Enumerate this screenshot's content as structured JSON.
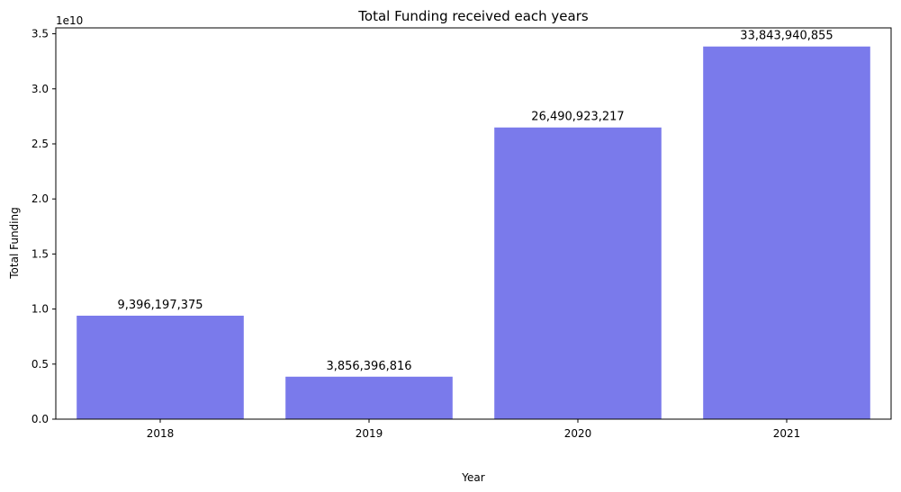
{
  "chart_data": {
    "type": "bar",
    "title": "Total Funding received each years",
    "xlabel": "Year",
    "ylabel": "Total Funding",
    "offset_label": "1e10",
    "categories": [
      "2018",
      "2019",
      "2020",
      "2021"
    ],
    "values": [
      9396197375,
      3856396816,
      26490923217,
      33843940855
    ],
    "value_labels": [
      "9,396,197,375",
      "3,856,396,816",
      "26,490,923,217",
      "33,843,940,855"
    ],
    "y_ticks": [
      0,
      0.5,
      1.0,
      1.5,
      2.0,
      2.5,
      3.0,
      3.5
    ],
    "y_tick_labels": [
      "0.0",
      "0.5",
      "1.0",
      "1.5",
      "2.0",
      "2.5",
      "3.0",
      "3.5"
    ],
    "y_scale": 10000000000,
    "ylim": [
      0,
      35536137897
    ],
    "grid": false,
    "bar_color": "#7a7aeb"
  }
}
